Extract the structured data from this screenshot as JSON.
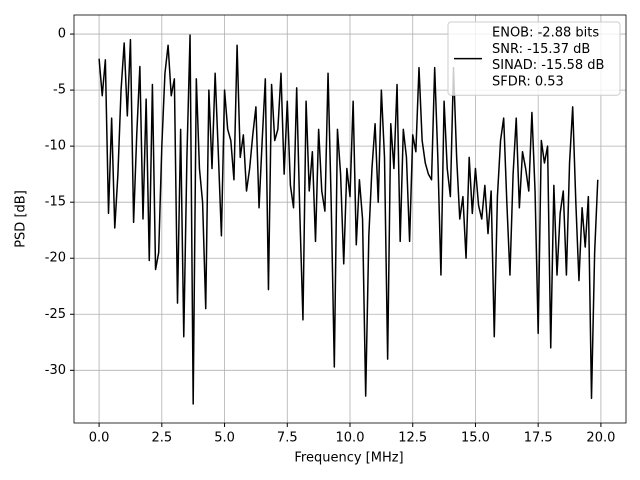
{
  "chart_data": {
    "type": "line",
    "xlabel": "Frequency [MHz]",
    "ylabel": "PSD [dB]",
    "x": [
      0,
      0.125,
      0.25,
      0.375,
      0.5,
      0.625,
      0.75,
      0.875,
      1,
      1.125,
      1.25,
      1.375,
      1.5,
      1.625,
      1.75,
      1.875,
      2,
      2.125,
      2.25,
      2.375,
      2.5,
      2.625,
      2.75,
      2.875,
      3,
      3.125,
      3.25,
      3.375,
      3.5,
      3.625,
      3.75,
      3.875,
      4,
      4.125,
      4.25,
      4.375,
      4.5,
      4.625,
      4.75,
      4.875,
      5,
      5.125,
      5.25,
      5.375,
      5.5,
      5.625,
      5.75,
      5.875,
      6,
      6.125,
      6.25,
      6.375,
      6.5,
      6.625,
      6.75,
      6.875,
      7,
      7.125,
      7.25,
      7.375,
      7.5,
      7.625,
      7.75,
      7.875,
      8,
      8.125,
      8.25,
      8.375,
      8.5,
      8.625,
      8.75,
      8.875,
      9,
      9.125,
      9.25,
      9.375,
      9.5,
      9.625,
      9.75,
      9.875,
      10,
      10.125,
      10.25,
      10.375,
      10.5,
      10.625,
      10.75,
      10.875,
      11,
      11.125,
      11.25,
      11.375,
      11.5,
      11.625,
      11.75,
      11.875,
      12,
      12.125,
      12.25,
      12.375,
      12.5,
      12.625,
      12.75,
      12.875,
      13,
      13.125,
      13.25,
      13.375,
      13.5,
      13.625,
      13.75,
      13.875,
      14,
      14.125,
      14.25,
      14.375,
      14.5,
      14.625,
      14.75,
      14.875,
      15,
      15.125,
      15.25,
      15.375,
      15.5,
      15.625,
      15.75,
      15.875,
      16,
      16.125,
      16.25,
      16.375,
      16.5,
      16.625,
      16.75,
      16.875,
      17,
      17.125,
      17.25,
      17.375,
      17.5,
      17.625,
      17.75,
      17.875,
      18,
      18.125,
      18.25,
      18.375,
      18.5,
      18.625,
      18.75,
      18.875,
      19,
      19.125,
      19.25,
      19.375,
      19.5,
      19.625,
      19.75,
      19.875
    ],
    "series": [
      {
        "color": "#000000",
        "values": [
          -2.2,
          -5.5,
          -2.3,
          -16,
          -7.5,
          -17.3,
          -12.5,
          -5,
          -0.8,
          -7.3,
          -0.5,
          -16.8,
          -9,
          -2.9,
          -16.5,
          -5.8,
          -20.2,
          -4.5,
          -21,
          -19.5,
          -10,
          -3.5,
          -1,
          -5.5,
          -4,
          -24,
          -8.5,
          -27,
          -11,
          -0.1,
          -33,
          -4,
          -12,
          -15,
          -24.5,
          -5,
          -12,
          -3.5,
          -10.5,
          -18,
          -5,
          -8.5,
          -9.5,
          -13,
          -1,
          -11,
          -9,
          -14,
          -12,
          -9,
          -6.5,
          -15.5,
          -9.5,
          -4,
          -22.8,
          -4.5,
          -9.5,
          -8.5,
          -3.5,
          -12.5,
          -6,
          -13.5,
          -15.5,
          -4.8,
          -16,
          -25.5,
          -6,
          -14,
          -10.5,
          -18.5,
          -8.5,
          -14,
          -15.8,
          -3.5,
          -15,
          -29.7,
          -8.5,
          -12.5,
          -20.5,
          -12,
          -14.5,
          -6,
          -18.8,
          -13,
          -16.5,
          -32.3,
          -18,
          -12,
          -8,
          -15,
          -5,
          -11,
          -29,
          -8,
          -12,
          -4.5,
          -18.5,
          -8.5,
          -11,
          -18.5,
          -9,
          -10.5,
          -3,
          -9.5,
          -11.5,
          -12.5,
          -13,
          -3,
          -11,
          -21.5,
          -6,
          -12,
          -14.5,
          -3,
          -11,
          -16.5,
          -14.5,
          -20,
          -11,
          -16,
          -12,
          -15.3,
          -16.5,
          -13.5,
          -17.8,
          -14,
          -27,
          -14.5,
          -9.5,
          -7.5,
          -15,
          -21.5,
          -12.5,
          -7.5,
          -15.5,
          -10.5,
          -12,
          -14,
          -7,
          -14,
          -26.7,
          -9.5,
          -11.5,
          -10,
          -28,
          -13.5,
          -21.5,
          -16,
          -14,
          -21.5,
          -11.5,
          -6.5,
          -15,
          -22,
          -15.5,
          -19,
          -14.5,
          -32.5,
          -19.5,
          -13
        ]
      }
    ],
    "legend": {
      "loc": "upper right",
      "entries": [
        "ENOB: -2.88 bits",
        "SNR: -15.37 dB",
        "SINAD: -15.58 dB",
        "SFDR: 0.53"
      ]
    },
    "xlim": [
      -1,
      21
    ],
    "ylim": [
      -34.7,
      1.7
    ],
    "xticks": [
      {
        "value": 0,
        "label": "0.0"
      },
      {
        "value": 2.5,
        "label": "2.5"
      },
      {
        "value": 5,
        "label": "5.0"
      },
      {
        "value": 7.5,
        "label": "7.5"
      },
      {
        "value": 10,
        "label": "10.0"
      },
      {
        "value": 12.5,
        "label": "12.5"
      },
      {
        "value": 15,
        "label": "15.0"
      },
      {
        "value": 17.5,
        "label": "17.5"
      },
      {
        "value": 20,
        "label": "20.0"
      }
    ],
    "yticks": [
      0,
      -5,
      -10,
      -15,
      -20,
      -25,
      -30
    ],
    "grid": true
  }
}
